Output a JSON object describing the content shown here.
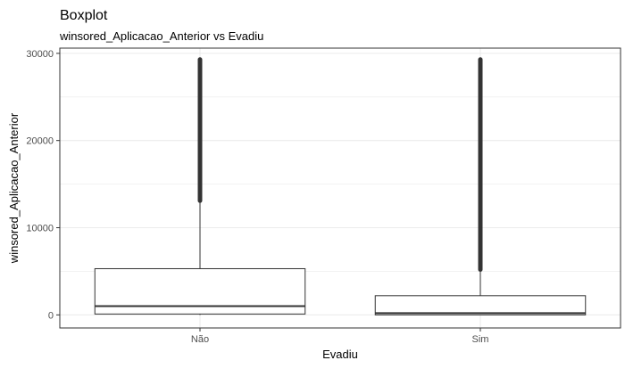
{
  "chart_data": {
    "type": "boxplot",
    "title": "Boxplot",
    "subtitle": "winsored_Aplicacao_Anterior vs Evadiu",
    "xlabel": "Evadiu",
    "ylabel": "winsored_Aplicacao_Anterior",
    "ylim": [
      -1500,
      30600
    ],
    "yticks": [
      0,
      10000,
      20000,
      30000
    ],
    "yticklabels": [
      "0",
      "10000",
      "20000",
      "30000"
    ],
    "grid": true,
    "categories": [
      "Não",
      "Sim"
    ],
    "boxes": [
      {
        "category": "Não",
        "q1": 100,
        "median": 1000,
        "q3": 5300,
        "whisker_low": 0,
        "whisker_high": 13100,
        "outlier_range": [
          13100,
          29300
        ]
      },
      {
        "category": "Sim",
        "q1": 0,
        "median": 200,
        "q3": 2200,
        "whisker_low": 0,
        "whisker_high": 5200,
        "outlier_range": [
          5200,
          29300
        ]
      }
    ],
    "colors": {
      "box_stroke": "#333333",
      "box_fill": "#ffffff",
      "outliers": "#333333",
      "grid": "#ebebeb",
      "panel_border": "#333333"
    }
  }
}
